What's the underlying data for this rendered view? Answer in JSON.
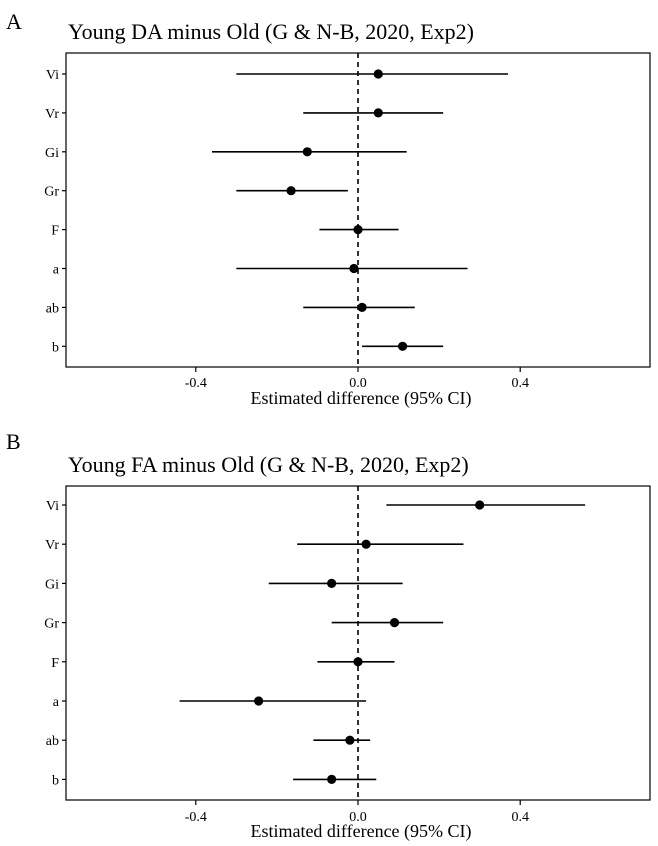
{
  "chart_data": [
    {
      "type": "forest",
      "panel_label": "A",
      "title": "Young DA minus Old (G & N-B, 2020, Exp2)",
      "xlabel": "Estimated difference (95% CI)",
      "xlim": [
        -0.72,
        0.72
      ],
      "xticks": [
        -0.4,
        0.0,
        0.4
      ],
      "xtick_labels": [
        "-0.4",
        "0.0",
        "0.4"
      ],
      "reference_line": 0.0,
      "categories": [
        "Vi",
        "Vr",
        "Gi",
        "Gr",
        "F",
        "a",
        "ab",
        "b"
      ],
      "estimates": [
        0.05,
        0.05,
        -0.125,
        -0.165,
        0.0,
        -0.01,
        0.01,
        0.11
      ],
      "lower": [
        -0.3,
        -0.135,
        -0.36,
        -0.3,
        -0.095,
        -0.3,
        -0.135,
        0.01
      ],
      "upper": [
        0.37,
        0.21,
        0.12,
        -0.025,
        0.1,
        0.27,
        0.14,
        0.21
      ]
    },
    {
      "type": "forest",
      "panel_label": "B",
      "title": "Young FA minus Old (G & N-B, 2020, Exp2)",
      "xlabel": "Estimated difference (95% CI)",
      "xlim": [
        -0.72,
        0.72
      ],
      "xticks": [
        -0.4,
        0.0,
        0.4
      ],
      "xtick_labels": [
        "-0.4",
        "0.0",
        "0.4"
      ],
      "reference_line": 0.0,
      "categories": [
        "Vi",
        "Vr",
        "Gi",
        "Gr",
        "F",
        "a",
        "ab",
        "b"
      ],
      "estimates": [
        0.3,
        0.02,
        -0.065,
        0.09,
        0.0,
        -0.245,
        -0.02,
        -0.065
      ],
      "lower": [
        0.07,
        -0.15,
        -0.22,
        -0.065,
        -0.1,
        -0.44,
        -0.11,
        -0.16
      ],
      "upper": [
        0.56,
        0.26,
        0.11,
        0.21,
        0.09,
        0.02,
        0.03,
        0.045
      ]
    }
  ]
}
